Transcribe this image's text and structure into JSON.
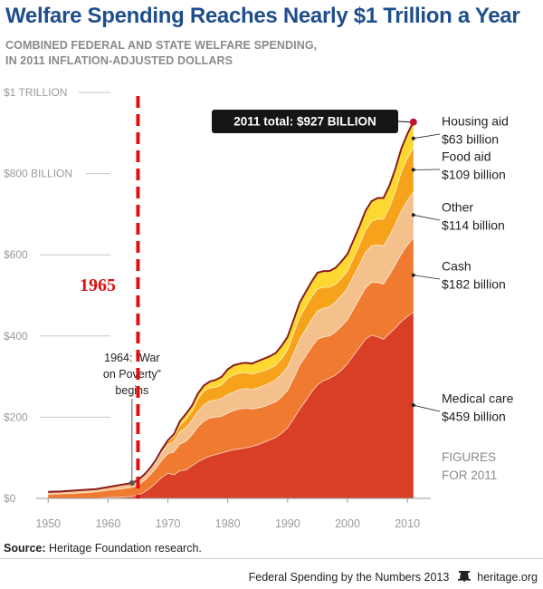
{
  "header": {
    "title": "Welfare Spending Reaches Nearly $1 Trillion a Year",
    "subtitle_line1": "COMBINED FEDERAL AND STATE WELFARE SPENDING,",
    "subtitle_line2": "IN 2011 INFLATION-ADJUSTED DOLLARS"
  },
  "footer": {
    "source_label": "Source:",
    "source_text": "Heritage Foundation research.",
    "series_text": "Federal Spending by the Numbers 2013",
    "site": "heritage.org"
  },
  "chart_data": {
    "type": "area",
    "stacked": true,
    "x": [
      1950,
      1952,
      1954,
      1956,
      1958,
      1960,
      1962,
      1964,
      1965,
      1966,
      1967,
      1968,
      1969,
      1970,
      1971,
      1972,
      1973,
      1974,
      1975,
      1976,
      1977,
      1978,
      1979,
      1980,
      1981,
      1982,
      1983,
      1984,
      1985,
      1986,
      1987,
      1988,
      1989,
      1990,
      1991,
      1992,
      1993,
      1994,
      1995,
      1996,
      1997,
      1998,
      1999,
      2000,
      2001,
      2002,
      2003,
      2004,
      2005,
      2006,
      2007,
      2008,
      2009,
      2010,
      2011
    ],
    "series": [
      {
        "name": "Medical care",
        "total_2011": "$459 billion",
        "color": "#d93f27",
        "values": [
          0,
          0,
          0,
          0,
          0,
          2,
          3,
          5,
          8,
          15,
          25,
          38,
          52,
          62,
          58,
          68,
          70,
          80,
          90,
          98,
          104,
          108,
          112,
          116,
          120,
          122,
          124,
          128,
          132,
          138,
          144,
          150,
          160,
          174,
          196,
          220,
          240,
          262,
          280,
          290,
          296,
          304,
          316,
          332,
          352,
          372,
          392,
          402,
          398,
          392,
          406,
          420,
          436,
          448,
          459
        ]
      },
      {
        "name": "Cash",
        "total_2011": "$182 billion",
        "color": "#ef7a30",
        "values": [
          10,
          11,
          12,
          14,
          16,
          18,
          20,
          22,
          24,
          28,
          32,
          36,
          42,
          48,
          56,
          66,
          70,
          76,
          86,
          92,
          94,
          92,
          90,
          94,
          96,
          98,
          98,
          92,
          90,
          88,
          88,
          88,
          90,
          92,
          100,
          108,
          110,
          110,
          112,
          108,
          104,
          106,
          108,
          108,
          114,
          120,
          126,
          130,
          134,
          136,
          144,
          156,
          166,
          176,
          182
        ]
      },
      {
        "name": "Other",
        "total_2011": "$114 billion",
        "color": "#f4c08c",
        "values": [
          6,
          6,
          7,
          7,
          7,
          8,
          9,
          10,
          11,
          12,
          14,
          16,
          20,
          22,
          26,
          30,
          34,
          36,
          38,
          40,
          42,
          42,
          44,
          46,
          46,
          48,
          48,
          48,
          50,
          52,
          52,
          54,
          56,
          58,
          62,
          64,
          66,
          68,
          70,
          70,
          72,
          74,
          76,
          78,
          82,
          84,
          88,
          90,
          92,
          94,
          96,
          100,
          106,
          110,
          114
        ]
      },
      {
        "name": "Food aid",
        "total_2011": "$109 billion",
        "color": "#f7a21b",
        "values": [
          0,
          0,
          0,
          0,
          0,
          0,
          1,
          1,
          1,
          2,
          2,
          3,
          5,
          8,
          12,
          16,
          20,
          22,
          30,
          34,
          32,
          32,
          34,
          40,
          42,
          40,
          40,
          38,
          38,
          36,
          36,
          36,
          38,
          42,
          48,
          54,
          56,
          56,
          54,
          52,
          48,
          44,
          42,
          42,
          44,
          48,
          54,
          60,
          64,
          66,
          70,
          80,
          96,
          104,
          109
        ]
      },
      {
        "name": "Housing aid",
        "total_2011": "$63 billion",
        "color": "#fcd830",
        "values": [
          0,
          0,
          0,
          0,
          0,
          0,
          0,
          0,
          1,
          1,
          1,
          2,
          2,
          3,
          6,
          10,
          14,
          14,
          14,
          14,
          16,
          18,
          20,
          22,
          24,
          24,
          24,
          26,
          28,
          30,
          30,
          30,
          32,
          32,
          34,
          36,
          36,
          38,
          40,
          40,
          40,
          40,
          42,
          42,
          44,
          46,
          48,
          50,
          52,
          52,
          54,
          56,
          58,
          60,
          63
        ]
      }
    ],
    "total_label": "2011 total: $927 BILLION",
    "xlim": [
      1948,
      2013
    ],
    "ylim": [
      0,
      1000
    ],
    "x_ticks": [
      1950,
      1960,
      1970,
      1980,
      1990,
      2000,
      2010
    ],
    "y_ticks": [
      {
        "value": 0,
        "label": "$0"
      },
      {
        "value": 200,
        "label": "$200"
      },
      {
        "value": 400,
        "label": "$400"
      },
      {
        "value": 600,
        "label": "$600"
      },
      {
        "value": 800,
        "label": "$800 BILLION"
      },
      {
        "value": 1000,
        "label": "$1 TRILLION"
      }
    ],
    "marker_line": {
      "year": 1965,
      "label": "1965",
      "color": "#dd1111"
    },
    "annotation": {
      "year": 1964,
      "lines": [
        "1964: “War",
        "on Poverty”",
        "begins"
      ]
    },
    "figures_note": [
      "FIGURES",
      "FOR 2011"
    ],
    "grid": false
  }
}
